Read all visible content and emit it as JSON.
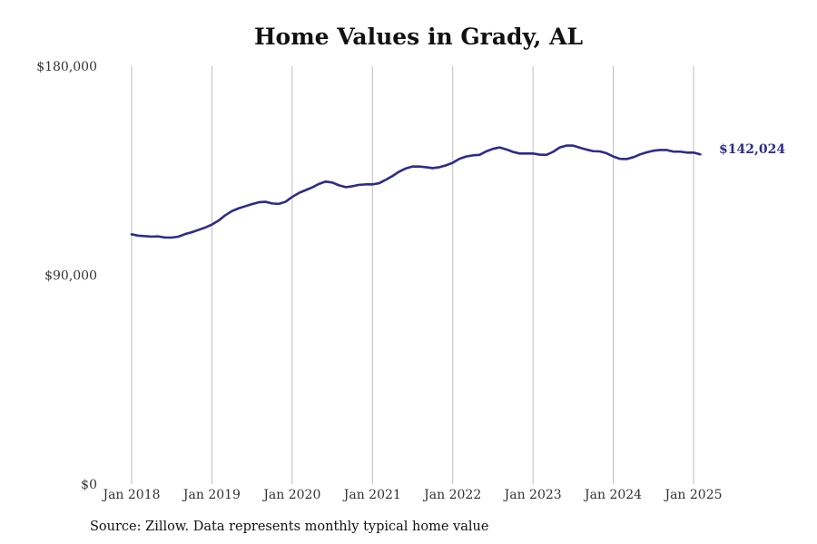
{
  "title": "Home Values in Grady, AL",
  "source": "Source: Zillow. Data represents monthly typical home value",
  "colors": {
    "line": "#2e2b8a",
    "grid": "#bdbdbd"
  },
  "chart_data": {
    "type": "line",
    "title": "Home Values in Grady, AL",
    "xlabel": "",
    "ylabel": "",
    "ylim": [
      0,
      180000
    ],
    "xlim": [
      "2018-01",
      "2025-04"
    ],
    "grid": {
      "x": true,
      "y": false
    },
    "y_ticks": [
      {
        "value": 0,
        "label": "$0"
      },
      {
        "value": 90000,
        "label": "$90,000"
      },
      {
        "value": 180000,
        "label": "$180,000"
      }
    ],
    "x_ticks": [
      {
        "value": "2018-01",
        "label": "Jan 2018"
      },
      {
        "value": "2019-01",
        "label": "Jan 2019"
      },
      {
        "value": "2020-01",
        "label": "Jan 2020"
      },
      {
        "value": "2021-01",
        "label": "Jan 2021"
      },
      {
        "value": "2022-01",
        "label": "Jan 2022"
      },
      {
        "value": "2023-01",
        "label": "Jan 2023"
      },
      {
        "value": "2024-01",
        "label": "Jan 2024"
      },
      {
        "value": "2025-01",
        "label": "Jan 2025"
      }
    ],
    "end_label": "$142,024",
    "series": [
      {
        "x": [
          "2018-01",
          "2018-02",
          "2018-03",
          "2018-04",
          "2018-05",
          "2018-06",
          "2018-07",
          "2018-08",
          "2018-09",
          "2018-10",
          "2018-11",
          "2018-12",
          "2019-01",
          "2019-02",
          "2019-03",
          "2019-04",
          "2019-05",
          "2019-06",
          "2019-07",
          "2019-08",
          "2019-09",
          "2019-10",
          "2019-11",
          "2019-12",
          "2020-01",
          "2020-02",
          "2020-03",
          "2020-04",
          "2020-05",
          "2020-06",
          "2020-07",
          "2020-08",
          "2020-09",
          "2020-10",
          "2020-11",
          "2020-12",
          "2021-01",
          "2021-02",
          "2021-03",
          "2021-04",
          "2021-05",
          "2021-06",
          "2021-07",
          "2021-08",
          "2021-09",
          "2021-10",
          "2021-11",
          "2021-12",
          "2022-01",
          "2022-02",
          "2022-03",
          "2022-04",
          "2022-05",
          "2022-06",
          "2022-07",
          "2022-08",
          "2022-09",
          "2022-10",
          "2022-11",
          "2022-12",
          "2023-01",
          "2023-02",
          "2023-03",
          "2023-04",
          "2023-05",
          "2023-06",
          "2023-07",
          "2023-08",
          "2023-09",
          "2023-10",
          "2023-11",
          "2023-12",
          "2024-01",
          "2024-02",
          "2024-03",
          "2024-04",
          "2024-05",
          "2024-06",
          "2024-07",
          "2024-08",
          "2024-09",
          "2024-10",
          "2024-11",
          "2024-12",
          "2025-01",
          "2025-02",
          "2025-03"
        ],
        "values": [
          107600,
          107000,
          106800,
          106600,
          106700,
          106200,
          106200,
          106600,
          107700,
          108500,
          109500,
          110500,
          111800,
          113500,
          115800,
          117600,
          118800,
          119700,
          120600,
          121400,
          121600,
          120900,
          120700,
          121600,
          123700,
          125400,
          126600,
          127800,
          129300,
          130300,
          129900,
          128700,
          127900,
          128300,
          128900,
          129100,
          129100,
          129600,
          131100,
          132700,
          134600,
          136000,
          136800,
          136800,
          136500,
          136100,
          136500,
          137300,
          138400,
          140100,
          141100,
          141600,
          141800,
          143300,
          144400,
          145000,
          144200,
          143100,
          142400,
          142400,
          142400,
          141900,
          141800,
          143100,
          145000,
          145800,
          145800,
          144900,
          144100,
          143400,
          143300,
          142500,
          141100,
          140100,
          140000,
          140800,
          142000,
          142900,
          143600,
          143900,
          143900,
          143200,
          143200,
          142800,
          142800,
          142024,
          null
        ]
      }
    ]
  }
}
